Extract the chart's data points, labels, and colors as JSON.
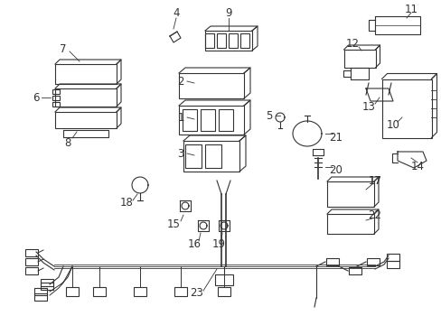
{
  "bg_color": "#ffffff",
  "line_color": "#333333",
  "label_fontsize": 8.5,
  "figsize": [
    4.89,
    3.6
  ],
  "dpi": 100
}
